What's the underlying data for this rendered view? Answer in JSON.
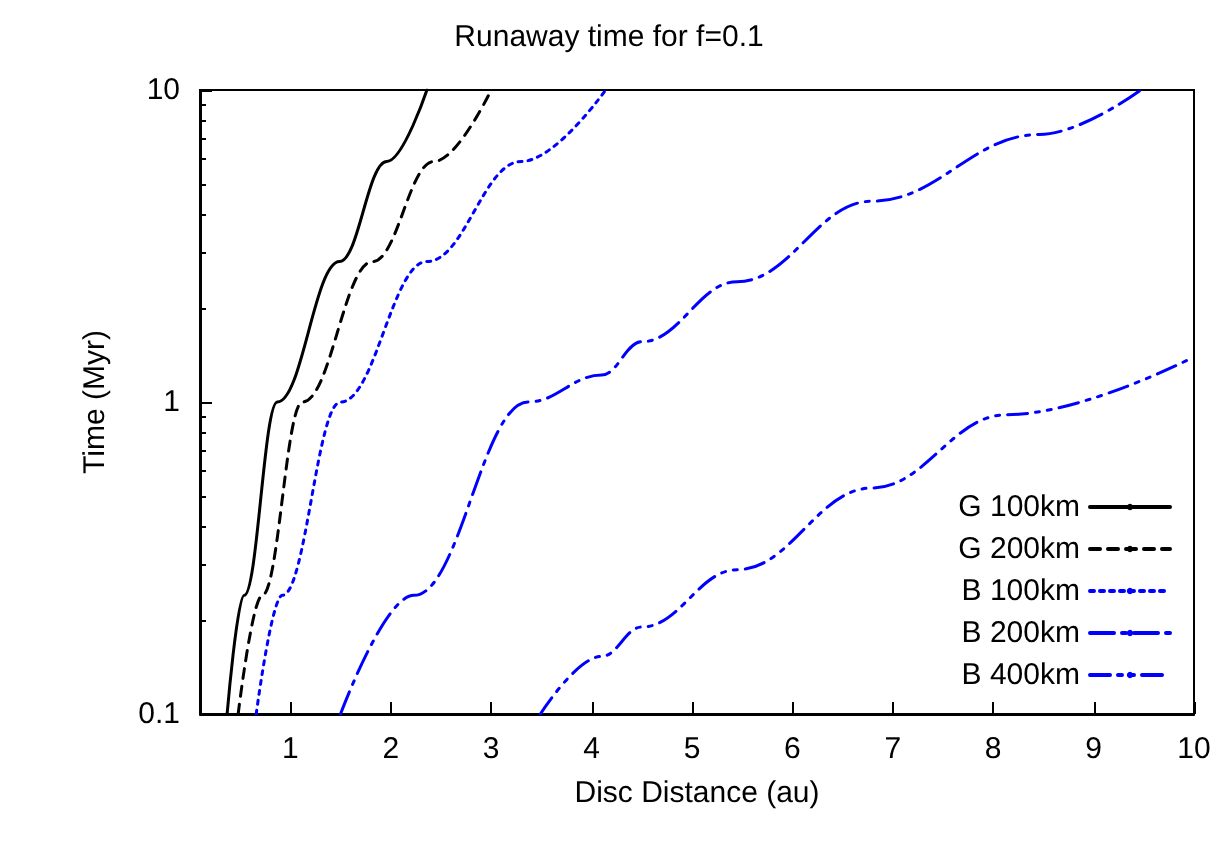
{
  "chart_data": {
    "type": "line",
    "title": "Runaway time for f=0.1",
    "xlabel": "Disc Distance (au)",
    "ylabel": "Time (Myr)",
    "xlim": [
      0.1,
      10
    ],
    "xticks": [
      1,
      2,
      3,
      4,
      5,
      6,
      7,
      8,
      9,
      10
    ],
    "ylim": [
      0.1,
      10
    ],
    "yticks": [
      0.1,
      1,
      10
    ],
    "log": "y",
    "grid": false,
    "legend": "bottom right",
    "series": [
      {
        "name": "G 100km",
        "color": "#000000",
        "line_style": "solid",
        "x": [
          0.37,
          0.54,
          0.87,
          1.49,
          1.96,
          2.36
        ],
        "values": [
          0.1,
          0.24,
          1,
          2.82,
          5.9,
          10
        ]
      },
      {
        "name": "G 200km",
        "color": "#000000",
        "line_style": "dashed",
        "x": [
          0.48,
          0.72,
          1.12,
          1.82,
          2.43,
          3.0
        ],
        "values": [
          0.1,
          0.24,
          1,
          2.82,
          5.9,
          10
        ]
      },
      {
        "name": "B 100km",
        "color": "#0000ff",
        "line_style": "dotted",
        "x": [
          0.66,
          0.92,
          1.5,
          2.36,
          3.3,
          4.14
        ],
        "values": [
          0.1,
          0.24,
          1,
          2.82,
          5.9,
          10
        ]
      },
      {
        "name": "B 200km",
        "color": "#0000ff",
        "line_style": "dashdot",
        "x": [
          1.5,
          2.23,
          3.37,
          4.1,
          4.5,
          5.45,
          6.79,
          8.46,
          9.47
        ],
        "values": [
          0.1,
          0.24,
          1,
          1.22,
          1.56,
          2.43,
          4.4,
          7.2,
          10
        ]
      },
      {
        "name": "B 400km",
        "color": "#0000ff",
        "line_style": "dashdotdot",
        "x": [
          3.49,
          4.1,
          4.5,
          5.45,
          6.79,
          8.13,
          9.97
        ],
        "values": [
          0.1,
          0.153,
          0.19,
          0.29,
          0.53,
          0.91,
          1.38
        ]
      }
    ]
  }
}
